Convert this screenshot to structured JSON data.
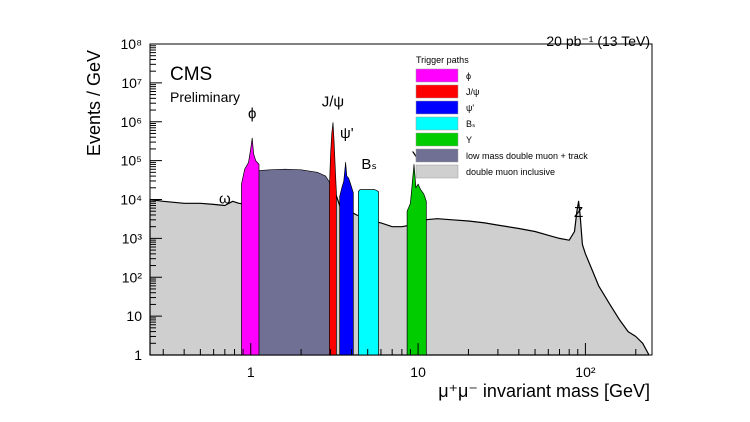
{
  "chart_data": {
    "type": "area",
    "title": "",
    "lumi_label": "20 pb⁻¹ (13 TeV)",
    "experiment": "CMS",
    "status": "Preliminary",
    "xlabel": "μ⁺μ⁻ invariant mass [GeV]",
    "ylabel": "Events / GeV",
    "xscale": "log",
    "yscale": "log",
    "xlim": [
      0.25,
      250
    ],
    "ylim": [
      1,
      100000000
    ],
    "x_ticks": [
      {
        "value": 1,
        "label": "1"
      },
      {
        "value": 10,
        "label": "10"
      },
      {
        "value": 100,
        "label": "10²"
      }
    ],
    "y_ticks": [
      {
        "value": 1,
        "label": "1"
      },
      {
        "value": 10,
        "label": "10"
      },
      {
        "value": 100,
        "label": "10²"
      },
      {
        "value": 1000,
        "label": "10³"
      },
      {
        "value": 10000,
        "label": "10⁴"
      },
      {
        "value": 100000,
        "label": "10⁵"
      },
      {
        "value": 1000000,
        "label": "10⁶"
      },
      {
        "value": 10000000,
        "label": "10⁷"
      },
      {
        "value": 100000000,
        "label": "10⁸"
      }
    ],
    "grid": false,
    "legend_title": "Trigger paths",
    "legend_position": "top-right",
    "peak_labels": [
      {
        "label": "ω",
        "x": 0.7,
        "y": 8000
      },
      {
        "label": "ϕ",
        "x": 1.02,
        "y": 1200000
      },
      {
        "label": "J/ψ",
        "x": 3.1,
        "y": 2500000
      },
      {
        "label": "ψ'",
        "x": 3.75,
        "y": 380000
      },
      {
        "label": "Bₛ",
        "x": 5.1,
        "y": 60000
      },
      {
        "label": "Υ",
        "x": 9.8,
        "y": 95000
      },
      {
        "label": "Z",
        "x": 91,
        "y": 3500
      }
    ],
    "series": [
      {
        "name": "double muon inclusive",
        "color": "#cfcfcf",
        "x": [
          0.25,
          0.3,
          0.4,
          0.5,
          0.6,
          0.7,
          0.78,
          0.85,
          0.95,
          1.02,
          1.1,
          1.3,
          1.6,
          2.0,
          2.5,
          2.9,
          3.0,
          3.1,
          3.2,
          3.4,
          3.69,
          3.9,
          4.3,
          5.0,
          6.0,
          7.0,
          8.0,
          9.0,
          9.46,
          10.0,
          10.35,
          11.0,
          13.0,
          16.0,
          20.0,
          25.0,
          30.0,
          40.0,
          50.0,
          60.0,
          70.0,
          80.0,
          86.0,
          89.0,
          91.0,
          93.0,
          96.0,
          100.0,
          110.0,
          120.0,
          140.0,
          160.0,
          180.0,
          200.0,
          220.0,
          240.0
        ],
        "y": [
          10000,
          9000,
          8000,
          8000,
          7500,
          7000,
          9000,
          8000,
          7500,
          12000,
          8000,
          7000,
          7000,
          6500,
          6500,
          6500,
          25000,
          50000,
          15000,
          7000,
          9000,
          5000,
          4000,
          3000,
          2500,
          2000,
          2000,
          2200,
          6000,
          4000,
          3000,
          3000,
          3200,
          3000,
          2800,
          2500,
          2200,
          1800,
          1500,
          1200,
          1000,
          900,
          1500,
          5000,
          9000,
          4000,
          700,
          400,
          150,
          60,
          20,
          8,
          4,
          3,
          2,
          1
        ]
      },
      {
        "name": "low mass double muon + track",
        "color": "#707094",
        "x": [
          0.97,
          1.1,
          1.3,
          1.6,
          2.0,
          2.5,
          2.8,
          3.0
        ],
        "y": [
          40000,
          55000,
          58000,
          60000,
          58000,
          50000,
          40000,
          25000
        ]
      },
      {
        "name": "ϕ",
        "color": "#ff00ff",
        "x": [
          0.88,
          0.92,
          0.97,
          1.0,
          1.02,
          1.04,
          1.07,
          1.12
        ],
        "y": [
          25000,
          60000,
          90000,
          200000,
          380000,
          150000,
          100000,
          80000
        ]
      },
      {
        "name": "J/ψ",
        "color": "#ff0000",
        "x": [
          2.95,
          3.0,
          3.05,
          3.1,
          3.15,
          3.2,
          3.25
        ],
        "y": [
          20000,
          150000,
          500000,
          950000,
          300000,
          60000,
          15000
        ]
      },
      {
        "name": "ψ'",
        "color": "#0000ff",
        "x": [
          3.4,
          3.5,
          3.6,
          3.69,
          3.75,
          3.85,
          3.95,
          4.1
        ],
        "y": [
          12000,
          20000,
          30000,
          90000,
          40000,
          35000,
          25000,
          15000
        ]
      },
      {
        "name": "Bₛ",
        "color": "#00ffff",
        "x": [
          4.4,
          4.5,
          5.5,
          5.8
        ],
        "y": [
          16000,
          18000,
          18000,
          16000
        ]
      },
      {
        "name": "Υ",
        "color": "#00cc00",
        "x": [
          8.6,
          9.0,
          9.46,
          9.7,
          10.0,
          10.35,
          10.8,
          11.2
        ],
        "y": [
          5000,
          8000,
          80000,
          20000,
          25000,
          18000,
          14000,
          9000
        ]
      }
    ]
  }
}
